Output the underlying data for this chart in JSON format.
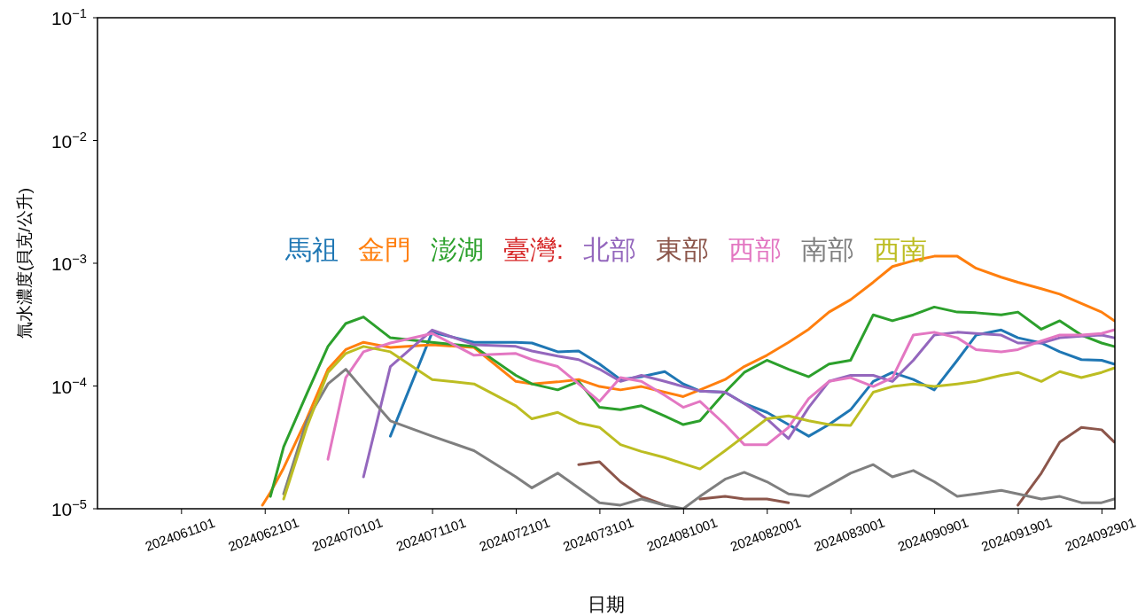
{
  "chart_data": {
    "type": "line",
    "ylabel": "氚水濃度(貝克/公升)",
    "xlabel": "日期",
    "log": "y",
    "legend": "center",
    "xlim": [
      "2024-06-01T00:00",
      "2024-09-30T14:00"
    ],
    "xticks": [
      {
        "value": "2024-06-11T01:00",
        "label": "2024061101"
      },
      {
        "value": "2024-06-21T01:00",
        "label": "2024062101"
      },
      {
        "value": "2024-07-01T01:00",
        "label": "2024070101"
      },
      {
        "value": "2024-07-11T01:00",
        "label": "2024071101"
      },
      {
        "value": "2024-07-21T01:00",
        "label": "2024072101"
      },
      {
        "value": "2024-07-31T01:00",
        "label": "2024073101"
      },
      {
        "value": "2024-08-10T01:00",
        "label": "2024081001"
      },
      {
        "value": "2024-08-20T01:00",
        "label": "2024082001"
      },
      {
        "value": "2024-08-30T01:00",
        "label": "2024083001"
      },
      {
        "value": "2024-09-09T01:00",
        "label": "2024090901"
      },
      {
        "value": "2024-09-19T01:00",
        "label": "2024091901"
      },
      {
        "value": "2024-09-29T01:00",
        "label": "2024092901"
      }
    ],
    "ylim": [
      1e-05,
      0.1
    ],
    "yticks": [
      {
        "value": 1e-05,
        "label": "10$^{−5}$"
      },
      {
        "value": 0.0001,
        "label": "10$^{−4}$"
      },
      {
        "value": 0.001,
        "label": "10$^{−3}$"
      },
      {
        "value": 0.01,
        "label": "10$^{−2}$"
      },
      {
        "value": 0.1,
        "label": "10$^{−1}$"
      }
    ],
    "x": [
      "2024-06-20T17:00",
      "2024-06-21T16:00",
      "2024-06-23T06:00",
      "2024-06-26T00:00",
      "2024-06-28T13:00",
      "2024-06-30T16:00",
      "2024-07-02T19:00",
      "2024-07-06T00:00",
      "2024-07-11T00:00",
      "2024-07-16T00:00",
      "2024-07-21T00:00",
      "2024-07-22T22:00",
      "2024-07-26T00:00",
      "2024-07-28T12:00",
      "2024-07-31T00:00",
      "2024-08-02T12:00",
      "2024-08-05T00:00",
      "2024-08-07T19:00",
      "2024-08-10T00:00",
      "2024-08-12T00:00",
      "2024-08-15T00:00",
      "2024-08-17T07:00",
      "2024-08-20T00:00",
      "2024-08-22T14:00",
      "2024-08-25T00:00",
      "2024-08-27T10:00",
      "2024-08-30T00:00",
      "2024-09-01T17:00",
      "2024-09-04T00:00",
      "2024-09-06T12:00",
      "2024-09-09T00:00",
      "2024-09-11T18:00",
      "2024-09-14T00:00",
      "2024-09-17T00:00",
      "2024-09-19T00:00",
      "2024-09-21T19:00",
      "2024-09-24T00:00",
      "2024-09-26T14:00",
      "2024-09-29T00:00",
      "2024-09-30T12:00"
    ],
    "series": [
      {
        "name": "馬祖",
        "color": "#1f77b4",
        "values": [
          null,
          null,
          null,
          null,
          null,
          null,
          null,
          3.9e-05,
          0.000274,
          0.000227,
          0.000227,
          0.000224,
          0.00019,
          0.000193,
          0.000151,
          0.000113,
          0.000119,
          0.000131,
          0.000104,
          9.1e-05,
          8.9e-05,
          7.2e-05,
          6.1e-05,
          4.85e-05,
          3.9e-05,
          4.85e-05,
          6.4e-05,
          0.000109,
          0.000129,
          0.000113,
          9.3e-05,
          0.000162,
          0.00026,
          0.000286,
          0.000247,
          0.000224,
          0.00019,
          0.000164,
          0.000162,
          0.000151
        ]
      },
      {
        "name": "金門",
        "color": "#ff7f0e",
        "values": [
          1.07e-05,
          1.36e-05,
          2.15e-05,
          5.4e-05,
          0.000137,
          0.000198,
          0.000227,
          0.000206,
          0.000217,
          0.000206,
          0.000109,
          0.000104,
          0.000108,
          0.000113,
          9.9e-05,
          9.3e-05,
          9.9e-05,
          8.9e-05,
          8.2e-05,
          9.3e-05,
          0.000113,
          0.000144,
          0.000178,
          0.000227,
          0.00029,
          0.0004,
          0.000505,
          0.0007,
          0.00094,
          0.00105,
          0.00114,
          0.00114,
          0.00091,
          0.00077,
          0.0007,
          0.00062,
          0.00056,
          0.00047,
          0.0004,
          0.00034
        ]
      },
      {
        "name": "澎湖",
        "color": "#2ca02c",
        "values": [
          null,
          1.26e-05,
          3.2e-05,
          8.6e-05,
          0.00021,
          0.000323,
          0.000365,
          0.000247,
          0.000227,
          0.00021,
          0.000122,
          0.000104,
          9.3e-05,
          0.000109,
          6.7e-05,
          6.4e-05,
          6.9e-05,
          5.7e-05,
          4.85e-05,
          5.2e-05,
          8.9e-05,
          0.000129,
          0.000162,
          0.000137,
          0.000119,
          0.000151,
          0.000162,
          0.00038,
          0.00034,
          0.00038,
          0.00044,
          0.0004,
          0.000395,
          0.00038,
          0.0004,
          0.00029,
          0.00034,
          0.00026,
          0.000224,
          0.00021
        ]
      },
      {
        "name": "臺灣:",
        "color": "#d62728",
        "values": [
          null,
          null,
          null,
          null,
          null,
          null,
          null,
          null,
          null,
          null,
          null,
          null,
          null,
          null,
          null,
          null,
          null,
          null,
          null,
          null,
          null,
          null,
          null,
          null,
          null,
          null,
          null,
          null,
          null,
          null,
          null,
          null,
          null,
          null,
          null,
          null,
          null,
          null,
          null,
          null
        ]
      },
      {
        "name": "北部",
        "color": "#9467bd",
        "values": [
          null,
          null,
          null,
          null,
          null,
          null,
          1.82e-05,
          0.000144,
          0.000286,
          0.000217,
          0.00021,
          0.000193,
          0.000175,
          0.000164,
          0.000137,
          0.000109,
          0.000122,
          0.000109,
          9.9e-05,
          9.1e-05,
          8.9e-05,
          7.2e-05,
          5.4e-05,
          3.73e-05,
          6.7e-05,
          0.000109,
          0.000122,
          0.000122,
          0.000109,
          0.000162,
          0.00026,
          0.000274,
          0.000268,
          0.00026,
          0.000224,
          0.000224,
          0.000247,
          0.000255,
          0.00026,
          0.000247
        ]
      },
      {
        "name": "東部",
        "color": "#8c564b",
        "values": [
          null,
          null,
          null,
          null,
          null,
          null,
          null,
          null,
          null,
          null,
          null,
          null,
          null,
          2.29e-05,
          2.41e-05,
          1.66e-05,
          1.26e-05,
          1.07e-05,
          null,
          1.2e-05,
          1.26e-05,
          1.2e-05,
          1.2e-05,
          1.12e-05,
          null,
          null,
          null,
          null,
          null,
          null,
          null,
          null,
          null,
          null,
          1.07e-05,
          1.95e-05,
          3.5e-05,
          4.6e-05,
          4.4e-05,
          3.5e-05
        ]
      },
      {
        "name": "西部",
        "color": "#e377c2",
        "values": [
          null,
          null,
          null,
          null,
          2.53e-05,
          0.000117,
          0.00019,
          0.000224,
          0.000268,
          0.000178,
          0.000184,
          0.000164,
          0.000144,
          0.000104,
          7.5e-05,
          0.000117,
          0.000109,
          8.4e-05,
          6.7e-05,
          7.5e-05,
          4.85e-05,
          3.33e-05,
          3.33e-05,
          4.6e-05,
          7.9e-05,
          0.000109,
          0.000117,
          9.9e-05,
          0.000117,
          0.00026,
          0.000274,
          0.000247,
          0.000198,
          0.00019,
          0.000198,
          0.000233,
          0.00026,
          0.00026,
          0.000268,
          0.000286
        ]
      },
      {
        "name": "南部",
        "color": "#7f7f7f",
        "values": [
          null,
          null,
          1.32e-05,
          5.2e-05,
          0.000104,
          0.000137,
          9.3e-05,
          5.2e-05,
          3.9e-05,
          2.97e-05,
          1.82e-05,
          1.48e-05,
          1.95e-05,
          1.48e-05,
          1.12e-05,
          1.07e-05,
          1.2e-05,
          1.07e-05,
          1e-05,
          1.26e-05,
          1.74e-05,
          1.98e-05,
          1.66e-05,
          1.32e-05,
          1.26e-05,
          1.55e-05,
          1.95e-05,
          2.29e-05,
          1.82e-05,
          2.05e-05,
          1.66e-05,
          1.26e-05,
          1.32e-05,
          1.41e-05,
          1.32e-05,
          1.2e-05,
          1.26e-05,
          1.12e-05,
          1.12e-05,
          1.2e-05
        ]
      },
      {
        "name": "西南",
        "color": "#bcbd22",
        "values": [
          null,
          null,
          1.2e-05,
          4.6e-05,
          0.000129,
          0.000184,
          0.00021,
          0.00019,
          0.000113,
          0.000104,
          6.9e-05,
          5.4e-05,
          6.1e-05,
          5e-05,
          4.6e-05,
          3.33e-05,
          2.93e-05,
          2.61e-05,
          2.33e-05,
          2.11e-05,
          2.97e-05,
          3.9e-05,
          5.4e-05,
          5.7e-05,
          5.2e-05,
          4.85e-05,
          4.77e-05,
          8.9e-05,
          9.9e-05,
          0.000104,
          9.9e-05,
          0.000104,
          0.000109,
          0.000122,
          0.000129,
          0.000109,
          0.000131,
          0.000117,
          0.000129,
          0.00014
        ]
      }
    ]
  }
}
